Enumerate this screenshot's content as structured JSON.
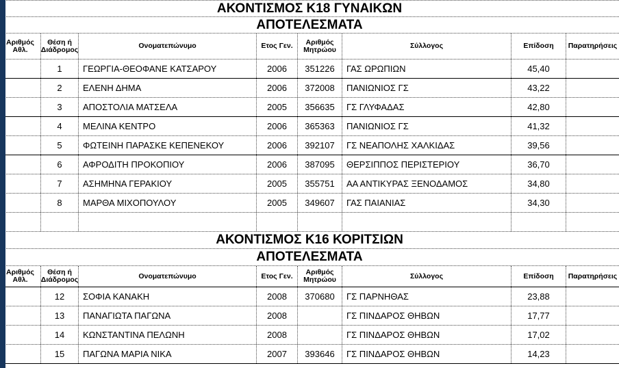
{
  "page": {
    "background_color": "#ffffff",
    "window_edge_color": "#17365D"
  },
  "columns": [
    "Αριθμός Αθλ.",
    "Θέση ή Διάδρομος",
    "Ονοματεπώνυμο",
    "Ετος Γεν.",
    "Αριθμός Μητρώου",
    "Σύλλογος",
    "Επίδοση",
    "Παρατηρήσεις"
  ],
  "tables": [
    {
      "title": "ΑΚΟΝΤΙΣΜΟΣ Κ18 ΓΥΝΑΙΚΩΝ",
      "subtitle": "ΑΠΟΤΕΛΕΣΜΑΤΑ",
      "rows": [
        {
          "athlete_no": "",
          "position": "1",
          "name": "ΓΕΩΡΓΙΑ-ΘΕΟΦΑΝΕ ΚΑΤΣΑΡΟΥ",
          "birth_year": "2006",
          "registry_no": "351226",
          "club": "ΓΑΣ ΩΡΩΠΙΩΝ",
          "performance": "45,40",
          "remarks": "",
          "bottom_border": "solid"
        },
        {
          "athlete_no": "",
          "position": "2",
          "name": "ΕΛΕΝΗ ΔΗΜΑ",
          "birth_year": "2006",
          "registry_no": "372008",
          "club": "ΠΑΝΙΩΝΙΟΣ ΓΣ",
          "performance": "43,22",
          "remarks": "",
          "bottom_border": "dotted"
        },
        {
          "athlete_no": "",
          "position": "3",
          "name": "ΑΠΟΣΤΟΛΙΑ ΜΑΤΣΕΛΑ",
          "birth_year": "2005",
          "registry_no": "356635",
          "club": "ΓΣ ΓΛΥΦΑΔΑΣ",
          "performance": "42,80",
          "remarks": "",
          "bottom_border": "solid"
        },
        {
          "athlete_no": "",
          "position": "4",
          "name": "ΜΕΛΙΝΑ ΚΕΝΤΡΟ",
          "birth_year": "2006",
          "registry_no": "365363",
          "club": "ΠΑΝΙΩΝΙΟΣ ΓΣ",
          "performance": "41,32",
          "remarks": "",
          "bottom_border": "dotted"
        },
        {
          "athlete_no": "",
          "position": "5",
          "name": "ΦΩΤΕΙΝΗ ΠΑΡΑΣΚΕ ΚΕΠΕΝΕΚΟΥ",
          "birth_year": "2006",
          "registry_no": "392107",
          "club": "ΓΣ ΝΕΑΠΟΛΗΣ ΧΑΛΚΙΔΑΣ",
          "performance": "39,56",
          "remarks": "",
          "bottom_border": "solid"
        },
        {
          "athlete_no": "",
          "position": "6",
          "name": "ΑΦΡΟΔΙΤΗ ΠΡΟΚΟΠΙΟΥ",
          "birth_year": "2006",
          "registry_no": "387095",
          "club": "ΘΕΡΣΙΠΠΟΣ ΠΕΡΙΣΤΕΡΙΟΥ",
          "performance": "36,70",
          "remarks": "",
          "bottom_border": "dotted"
        },
        {
          "athlete_no": "",
          "position": "7",
          "name": "ΑΣΗΜΗΝΑ ΓΕΡΑΚΙΟΥ",
          "birth_year": "2005",
          "registry_no": "355751",
          "club": "ΑΑ ΑΝΤΙΚΥΡΑΣ ΞΕΝΟΔΑΜΟΣ",
          "performance": "34,80",
          "remarks": "",
          "bottom_border": "dotted"
        },
        {
          "athlete_no": "",
          "position": "8",
          "name": "ΜΑΡΘΑ ΜΙΧΟΠΟΥΛΟΥ",
          "birth_year": "2005",
          "registry_no": "349607",
          "club": "ΓΑΣ ΠΑΙΑΝΙΑΣ",
          "performance": "34,30",
          "remarks": "",
          "bottom_border": "dotted"
        }
      ]
    },
    {
      "title": "ΑΚΟΝΤΙΣΜΟΣ Κ16 ΚΟΡΙΤΣΙΩΝ",
      "subtitle": "ΑΠΟΤΕΛΕΣΜΑΤΑ",
      "rows": [
        {
          "athlete_no": "",
          "position": "12",
          "name": "ΣΟΦΙΑ ΚΑΝΑΚΗ",
          "birth_year": "2008",
          "registry_no": "370680",
          "club": "ΓΣ ΠΑΡΝΗΘΑΣ",
          "performance": "23,88",
          "remarks": "",
          "bottom_border": "dotted"
        },
        {
          "athlete_no": "",
          "position": "13",
          "name": "ΠΑΝΑΓΙΩΤΑ ΠΑΓΩΝΑ",
          "birth_year": "2008",
          "registry_no": "",
          "club": "ΓΣ ΠΙΝΔΑΡΟΣ ΘΗΒΩΝ",
          "performance": "17,77",
          "remarks": "",
          "bottom_border": "dotted"
        },
        {
          "athlete_no": "",
          "position": "14",
          "name": "ΚΩΝΣΤΑΝΤΙΝΑ ΠΕΛΩΝΗ",
          "birth_year": "2008",
          "registry_no": "",
          "club": "ΓΣ ΠΙΝΔΑΡΟΣ ΘΗΒΩΝ",
          "performance": "17,02",
          "remarks": "",
          "bottom_border": "dotted"
        },
        {
          "athlete_no": "",
          "position": "15",
          "name": "ΠΑΓΩΝΑ ΜΑΡΙΑ ΝΙΚΑ",
          "birth_year": "2007",
          "registry_no": "393646",
          "club": "ΓΣ ΠΙΝΔΑΡΟΣ ΘΗΒΩΝ",
          "performance": "14,23",
          "remarks": "",
          "bottom_border": "solid"
        }
      ]
    }
  ]
}
